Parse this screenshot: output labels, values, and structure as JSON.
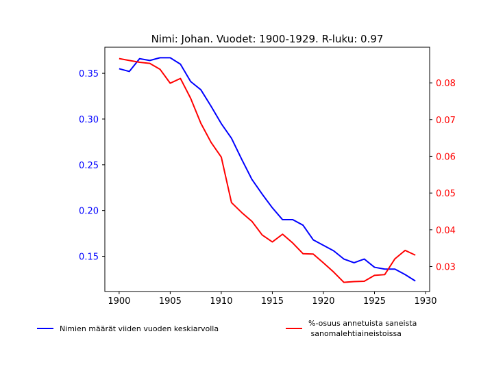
{
  "chart_data": {
    "type": "line",
    "title": "Nimi: Johan. Vuodet: 1900-1929. R-luku: 0.97",
    "x": [
      1900,
      1901,
      1902,
      1903,
      1904,
      1905,
      1906,
      1907,
      1908,
      1909,
      1910,
      1911,
      1912,
      1913,
      1914,
      1915,
      1916,
      1917,
      1918,
      1919,
      1920,
      1921,
      1922,
      1923,
      1924,
      1925,
      1926,
      1927,
      1928,
      1929
    ],
    "xlim": [
      1898.6,
      1930.4
    ],
    "x_ticks": [
      "1900",
      "1905",
      "1910",
      "1915",
      "1920",
      "1925",
      "1930"
    ],
    "left_axis": {
      "color": "#0000ff",
      "ylim": [
        0.1115,
        0.3785
      ],
      "ticks": [
        "0.15",
        "0.20",
        "0.25",
        "0.30",
        "0.35"
      ]
    },
    "right_axis": {
      "color": "#ff0000",
      "ylim": [
        0.0232,
        0.0897
      ],
      "ticks": [
        "0.03",
        "0.04",
        "0.05",
        "0.06",
        "0.07",
        "0.08"
      ]
    },
    "series": [
      {
        "name": "Nimien määrät viiden vuoden keskiarvolla",
        "color": "#0000ff",
        "axis": "left",
        "values": [
          0.355,
          0.352,
          0.366,
          0.364,
          0.367,
          0.367,
          0.36,
          0.341,
          0.332,
          0.314,
          0.295,
          0.279,
          0.256,
          0.234,
          0.218,
          0.203,
          0.19,
          0.19,
          0.184,
          0.168,
          0.162,
          0.156,
          0.147,
          0.143,
          0.147,
          0.138,
          0.136,
          0.136,
          0.13,
          0.123
        ]
      },
      {
        "name": "%-osuus annetuista saneista\n sanomalehtiaineistoissa",
        "color": "#ff0000",
        "axis": "right",
        "values": [
          0.0866,
          0.0861,
          0.0856,
          0.0853,
          0.0837,
          0.0799,
          0.0812,
          0.0758,
          0.069,
          0.0638,
          0.0598,
          0.0474,
          0.0447,
          0.0423,
          0.0386,
          0.0367,
          0.0388,
          0.0364,
          0.0335,
          0.0334,
          0.031,
          0.0285,
          0.0257,
          0.0259,
          0.026,
          0.0276,
          0.0278,
          0.0321,
          0.0344,
          0.0331
        ]
      }
    ],
    "grid": false,
    "legend": "bottom"
  }
}
